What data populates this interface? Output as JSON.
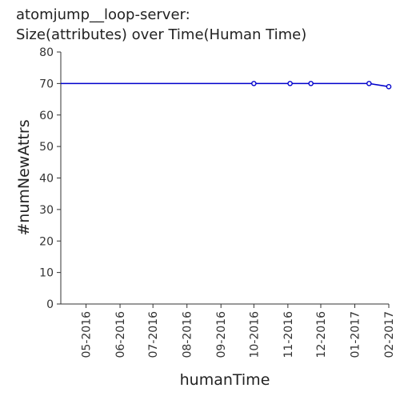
{
  "chart_data": {
    "type": "line",
    "title_line1": "atomjump__loop-server:",
    "title_line2": "Size(attributes) over Time(Human Time)",
    "xlabel": "humanTime",
    "ylabel": "#numNewAttrs",
    "ylim": [
      0,
      80
    ],
    "y_ticks": [
      "0",
      "10",
      "20",
      "30",
      "40",
      "50",
      "60",
      "70",
      "80"
    ],
    "x_ticks": [
      "05-2016",
      "06-2016",
      "07-2016",
      "08-2016",
      "09-2016",
      "10-2016",
      "11-2016",
      "12-2016",
      "01-2017",
      "02-2017"
    ],
    "xlim": [
      "2016-04-08",
      "2017-02-01"
    ],
    "grid": false,
    "series": [
      {
        "color": "#0000cc",
        "points": [
          {
            "x": "2016-04-08",
            "y": 70,
            "marker": false
          },
          {
            "x": "2016-10-01",
            "y": 70,
            "marker": true
          },
          {
            "x": "2016-11-03",
            "y": 70,
            "marker": true
          },
          {
            "x": "2016-11-22",
            "y": 70,
            "marker": true
          },
          {
            "x": "2017-01-14",
            "y": 70,
            "marker": true
          },
          {
            "x": "2017-02-01",
            "y": 69,
            "marker": true
          }
        ]
      }
    ]
  }
}
